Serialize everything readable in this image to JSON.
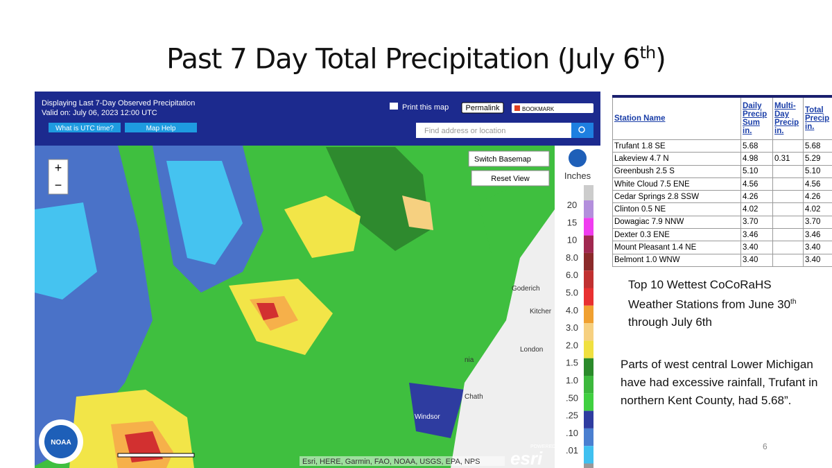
{
  "title": {
    "text": "Past 7 Day Total Precipitation (July 6",
    "sup": "th",
    "end": ")"
  },
  "map": {
    "header": {
      "line1": "Displaying Last 7-Day Observed Precipitation",
      "line2": "Valid on: July 06, 2023 12:00 UTC",
      "utc_button": "What is UTC time?",
      "help_button": "Map Help",
      "print": "Print this map",
      "permalink": "Permalink",
      "bookmark": "BOOKMARK",
      "search_placeholder": "Find address or location"
    },
    "controls": {
      "zoom_in": "+",
      "zoom_out": "−",
      "switch_basemap": "Switch Basemap",
      "reset_view": "Reset View"
    },
    "places": [
      "Goderich",
      "Kitcher",
      "London",
      "nia",
      "Chath",
      "Windsor"
    ],
    "legend": {
      "title": "Inches",
      "labels": [
        "20",
        "15",
        "10",
        "8.0",
        "6.0",
        "5.0",
        "4.0",
        "3.0",
        "2.0",
        "1.5",
        "1.0",
        ".50",
        ".25",
        ".10",
        ".01"
      ]
    },
    "attribution": "Esri, HERE, Garmin, FAO, NOAA, USGS, EPA, NPS",
    "powered_by": "POWERED BY",
    "esri": "esri",
    "noaa": "NOAA"
  },
  "table": {
    "header": [
      "Station Name",
      "Daily Precip Sum in.",
      "Multi-Day Precip in.",
      "Total Precip in."
    ],
    "rows": [
      [
        "Trufant 1.8 SE",
        "5.68",
        "",
        "5.68"
      ],
      [
        "Lakeview 4.7 N",
        "4.98",
        "0.31",
        "5.29"
      ],
      [
        "Greenbush 2.5 S",
        "5.10",
        "",
        "5.10"
      ],
      [
        "White Cloud 7.5 ENE",
        "4.56",
        "",
        "4.56"
      ],
      [
        "Cedar Springs 2.8 SSW",
        "4.26",
        "",
        "4.26"
      ],
      [
        "Clinton 0.5 NE",
        "4.02",
        "",
        "4.02"
      ],
      [
        "Dowagiac 7.9 NNW",
        "3.70",
        "",
        "3.70"
      ],
      [
        "Dexter 0.3 ENE",
        "3.46",
        "",
        "3.46"
      ],
      [
        "Mount Pleasant 1.4 NE",
        "3.40",
        "",
        "3.40"
      ],
      [
        "Belmont 1.0 WNW",
        "3.40",
        "",
        "3.40"
      ]
    ]
  },
  "caption": {
    "a": "Top 10 Wettest CoCoRaHS Weather Stations from June 30",
    "sup": "th",
    "b": " through July 6th"
  },
  "note": "Parts of west central Lower Michigan have had excessive rainfall, Trufant in northern Kent County, had 5.68”.",
  "page_number": "6"
}
